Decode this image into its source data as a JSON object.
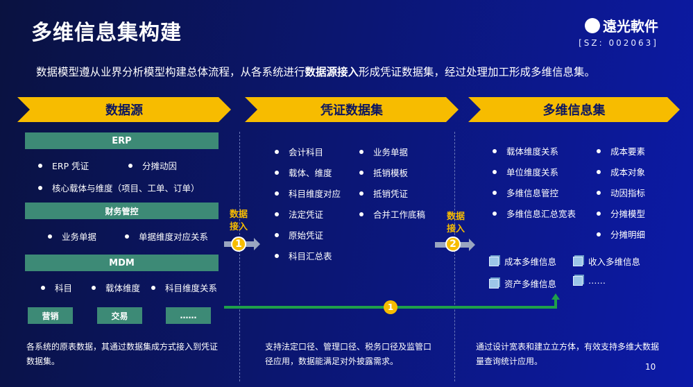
{
  "title": "多维信息集构建",
  "logo": {
    "name": "遠光軟件",
    "code": "[SZ: 002063]"
  },
  "intro": {
    "pre": "数据模型遵从业界分析模型构建总体流程，从各系统进行",
    "bold": "数据源接入",
    "post": "形成凭证数据集，经过处理加工形成多维信息集。"
  },
  "sections": [
    {
      "header": "数据源",
      "erp": {
        "label": "ERP",
        "items": [
          "ERP 凭证",
          "分摊动因",
          "核心载体与维度（项目、工单、订单）"
        ]
      },
      "fin": {
        "label": "财务管控",
        "items": [
          "业务单据",
          "单据维度对应关系"
        ]
      },
      "mdm": {
        "label": "MDM",
        "items": [
          "科目",
          "载体维度",
          "科目维度关系"
        ]
      },
      "others": [
        "营销",
        "交易",
        "……"
      ],
      "footer": "各系统的原表数据，其通过数据集成方式接入到凭证数据集。"
    },
    {
      "header": "凭证数据集",
      "col1": [
        "会计科目",
        "载体、维度",
        "科目维度对应",
        "法定凭证",
        "原始凭证",
        "科目汇总表"
      ],
      "col2": [
        "业务单据",
        "抵销模板",
        "抵销凭证",
        "合并工作底稿"
      ],
      "footer": "支持法定口径、管理口径、税务口径及监管口径应用，数据能满足对外披露需求。"
    },
    {
      "header": "多维信息集",
      "col1": [
        "载体维度关系",
        "单位维度关系",
        "多维信息管控",
        "多维信息汇总宽表"
      ],
      "col2": [
        "成本要素",
        "成本对象",
        "动因指标",
        "分摊模型",
        "分摊明细"
      ],
      "cubes": [
        "成本多维信息",
        "收入多维信息",
        "资产多维信息",
        "……"
      ],
      "footer": "通过设计宽表和建立立方体，有效支持多维大数据量查询统计应用。"
    }
  ],
  "access": [
    {
      "label1": "数据",
      "label2": "接入",
      "num": "1"
    },
    {
      "label1": "数据",
      "label2": "接入",
      "num": "2"
    }
  ],
  "bypass_num": "1",
  "page_number": "10",
  "colors": {
    "accent": "#f7bc00",
    "bar": "#3d8a76",
    "line": "#1fa04a"
  }
}
